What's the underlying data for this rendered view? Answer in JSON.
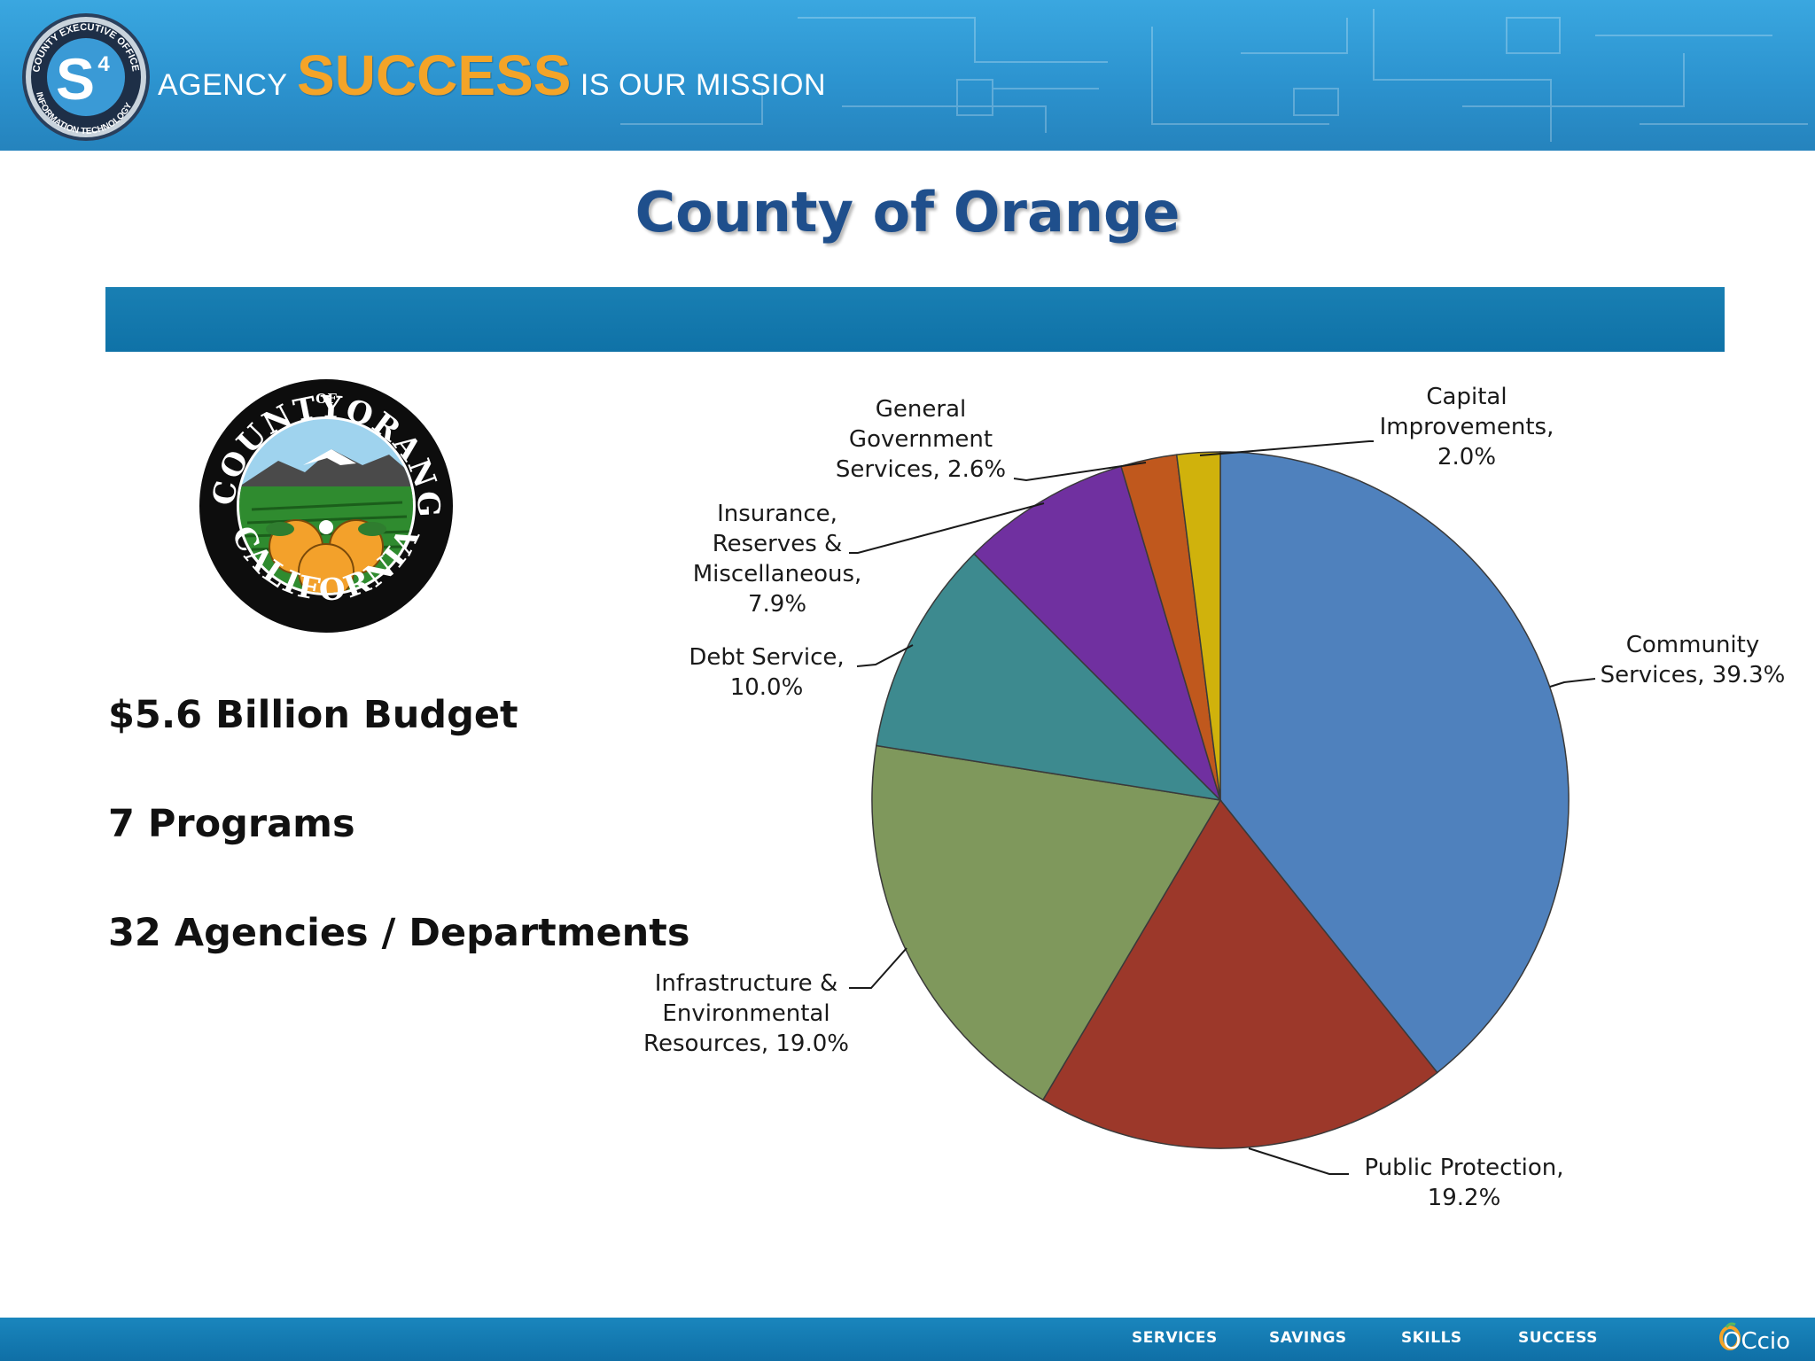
{
  "header": {
    "seal_text": "COUNTY EXECUTIVE OFFICE · INFORMATION TECHNOLOGY",
    "seal_mark": "S",
    "seal_superscript": "4",
    "tagline_prefix": "AGENCY",
    "tagline_highlight": "SUCCESS",
    "tagline_suffix": "IS OUR MISSION"
  },
  "slide": {
    "title": "County of Orange"
  },
  "county_seal": {
    "top_text": "COUNTY",
    "of_text": "OF",
    "right_text": "ORANGE",
    "bottom_text": "CALIFORNIA"
  },
  "stats": {
    "budget": "$5.6 Billion Budget",
    "programs": "7 Programs",
    "agencies": "32 Agencies / Departments"
  },
  "chart_data": {
    "type": "pie",
    "title": "",
    "slices": [
      {
        "label": "Community Services",
        "value": 39.3,
        "color": "#4f81bd",
        "label_lines": [
          "Community",
          "Services, 39.3%"
        ]
      },
      {
        "label": "Public Protection",
        "value": 19.2,
        "color": "#9c382a",
        "label_lines": [
          "Public Protection,",
          "19.2%"
        ]
      },
      {
        "label": "Infrastructure & Environmental Resources",
        "value": 19.0,
        "color": "#7f985c",
        "label_lines": [
          "Infrastructure &",
          "Environmental",
          "Resources, 19.0%"
        ]
      },
      {
        "label": "Debt Service",
        "value": 10.0,
        "color": "#3d8a8f",
        "label_lines": [
          "Debt Service,",
          "10.0%"
        ]
      },
      {
        "label": "Insurance, Reserves & Miscellaneous",
        "value": 7.9,
        "color": "#7030a0",
        "label_lines": [
          "Insurance,",
          "Reserves &",
          "Miscellaneous,",
          "7.9%"
        ]
      },
      {
        "label": "General Government Services",
        "value": 2.6,
        "color": "#c0581d",
        "label_lines": [
          "General",
          "Government",
          "Services, 2.6%"
        ]
      },
      {
        "label": "Capital Improvements",
        "value": 2.0,
        "color": "#d0b20c",
        "label_lines": [
          "Capital",
          "Improvements,",
          "2.0%"
        ]
      }
    ]
  },
  "footer": {
    "links": [
      "SERVICES",
      "SAVINGS",
      "SKILLS",
      "SUCCESS"
    ],
    "logo_text": "OCcio"
  }
}
